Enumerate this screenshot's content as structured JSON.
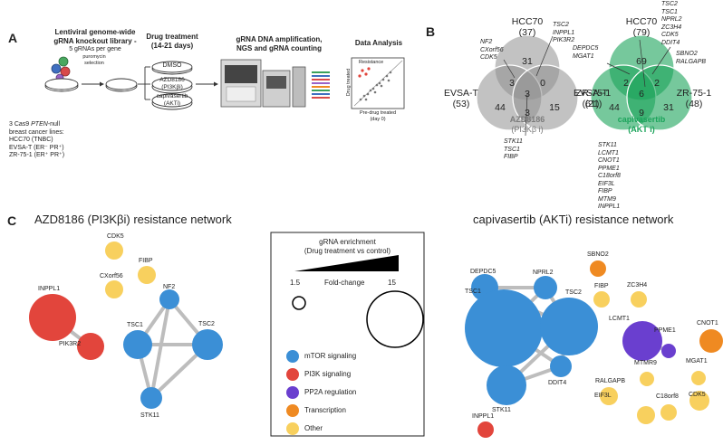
{
  "panel_a": {
    "label": "A",
    "library_title_1": "Lentiviral genome-wide",
    "library_title_2": "gRNA knockout library -",
    "library_sub": "5 gRNAs per gene",
    "puro_1": "puromycin",
    "puro_2": "selection",
    "cas9_1": "3 Cas9",
    "cas9_italic": "PTEN",
    "cas9_2": "-null",
    "cas9_3": "breast cancer lines:",
    "lines": [
      "HCC70 (TNBC)",
      "EVSA-T (ER⁻ PR⁺)",
      "ZR-75-1 (ER⁺ PR⁺)"
    ],
    "drug_title_1": "Drug treatment",
    "drug_title_2": "(14-21 days)",
    "dishes": [
      {
        "line1": "DMSO",
        "line2": ""
      },
      {
        "line1": "AZD8186",
        "line2": "(PI3Kβi)"
      },
      {
        "line1": "capivasertib",
        "line2": "(AKTi)"
      }
    ],
    "ngs_title_1": "gRNA DNA amplification,",
    "ngs_title_2": "NGS and gRNA counting",
    "analysis_title": "Data Analysis",
    "plot_tag": "Resistance",
    "plot_ylabel": "Drug treated",
    "plot_xlabel_1": "Pre-drug treated",
    "plot_xlabel_2": "(day 0)"
  },
  "panel_b": {
    "label": "B",
    "venn1": {
      "top_label": "HCC70",
      "top_count": "(37)",
      "left_label": "EVSA-T",
      "left_count": "(53)",
      "right_label": "ZR-75-1",
      "right_count": "(21)",
      "center_name_1": "AZD8186",
      "center_name_2": "(PI3Kβ i)",
      "numbers": {
        "top": "31",
        "left": "44",
        "right": "15",
        "top_left": "3",
        "top_right": "0",
        "left_right": "3",
        "center": "3"
      },
      "genes_topleft": [
        "NF2",
        "CXorf56",
        "CDK5"
      ],
      "genes_topright": [
        "TSC2",
        "INPPL1",
        "PIK3R2"
      ],
      "genes_bottom": [
        "STK11",
        "TSC1",
        "FIBP"
      ]
    },
    "venn2": {
      "top_label": "HCC70",
      "top_count": "(79)",
      "left_label": "EVSA-T",
      "left_count": "(61)",
      "right_label": "ZR-75-1",
      "right_count": "(48)",
      "center_name_1": "capivasertib",
      "center_name_2": "(AKT i)",
      "numbers": {
        "top": "69",
        "left": "44",
        "right": "31",
        "top_left": "2",
        "top_right": "2",
        "left_right": "9",
        "center": "6"
      },
      "genes_top": [
        "TSC2",
        "TSC1",
        "NPRL2",
        "ZC3H4",
        "CDK5",
        "DDIT4"
      ],
      "genes_left": [
        "DEPDC5",
        "MGAT1"
      ],
      "genes_right": [
        "SBNO2",
        "RALGAPB"
      ],
      "genes_bottom": [
        "STK11",
        "LCMT1",
        "CNOT1",
        "PPME1",
        "C18orf8",
        "EIF3L",
        "FIBP",
        "MTM9",
        "INPPL1"
      ]
    }
  },
  "panel_c": {
    "label": "C",
    "left_title": "AZD8186 (PI3Kβi) resistance network",
    "right_title": "capivasertib (AKTi) resistance network",
    "legend": {
      "title_1": "gRNA enrichment",
      "title_2": "(Drug treatment vs control)",
      "fc_label": "Fold-change",
      "fc_min": "1.5",
      "fc_max": "15",
      "items": [
        {
          "label": "mTOR signaling",
          "color": "#3b8fd6"
        },
        {
          "label": "PI3K signaling",
          "color": "#e2453c"
        },
        {
          "label": "PP2A regulation",
          "color": "#6a3fcf"
        },
        {
          "label": "Transcription",
          "color": "#ef8a22"
        },
        {
          "label": "Other",
          "color": "#f8d05e"
        }
      ]
    },
    "left_nodes": [
      "CDK5",
      "FIBP",
      "CXorf56",
      "INPPL1",
      "NF2",
      "TSC1",
      "TSC2",
      "PIK3R2",
      "STK11"
    ],
    "right_nodes": [
      "DEPDC5",
      "NPRL2",
      "SBNO2",
      "TSC1",
      "TSC2",
      "FIBP",
      "ZC3H4",
      "LCMT1",
      "PPME1",
      "CNOT1",
      "MTMR9",
      "MGAT1",
      "RALGAPB",
      "EIF3L",
      "C18orf8",
      "CDK5",
      "STK11",
      "DDIT4",
      "INPPL1"
    ]
  }
}
